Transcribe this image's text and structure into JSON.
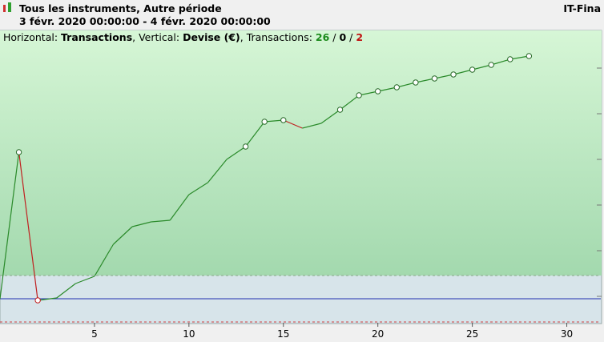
{
  "header": {
    "title": "Tous les instruments, Autre période",
    "period": "3 févr. 2020 00:00:00 - 4 févr. 2020 00:00:00",
    "brand": "IT-Fina"
  },
  "info": [
    {
      "text": "Horizontal: "
    },
    {
      "text": "Transactions",
      "bold": true
    },
    {
      "text": ", Vertical: "
    },
    {
      "text": "Devise (€)",
      "bold": true
    },
    {
      "text": ", Transactions: "
    },
    {
      "text": "26",
      "bold": true,
      "color": "#1a8a1a"
    },
    {
      "text": " / "
    },
    {
      "text": "0",
      "bold": true
    },
    {
      "text": " / "
    },
    {
      "text": "2",
      "bold": true,
      "color": "#c01010"
    }
  ],
  "chart_data": {
    "type": "line",
    "x": [
      0,
      1,
      2,
      3,
      4,
      5,
      6,
      7,
      8,
      9,
      10,
      11,
      12,
      13,
      14,
      15,
      16,
      17,
      18,
      19,
      20,
      21,
      22,
      23,
      24,
      25,
      26,
      27,
      28
    ],
    "values": [
      0,
      183,
      -2,
      1,
      19,
      28,
      68,
      90,
      96,
      98,
      130,
      145,
      174,
      190,
      221,
      223,
      213,
      219,
      236,
      254,
      259,
      264,
      270,
      275,
      280,
      286,
      292,
      299,
      303
    ],
    "markers": [
      1,
      2,
      13,
      14,
      15,
      18,
      19,
      20,
      21,
      22,
      23,
      24,
      25,
      26,
      27,
      28
    ],
    "up_color": "#2a8a2a",
    "down_color": "#c02020",
    "xlim": [
      0,
      31.8
    ],
    "ylim": [
      -30,
      335
    ],
    "xticks": [
      5,
      10,
      15,
      20,
      25,
      30
    ],
    "levels": [
      {
        "value": 29,
        "color": "#8aa88a",
        "dashed": true
      },
      {
        "value": 0,
        "color": "#2030b0",
        "dashed": false
      },
      {
        "value": -29,
        "color": "#d04040",
        "dashed": true
      }
    ]
  }
}
